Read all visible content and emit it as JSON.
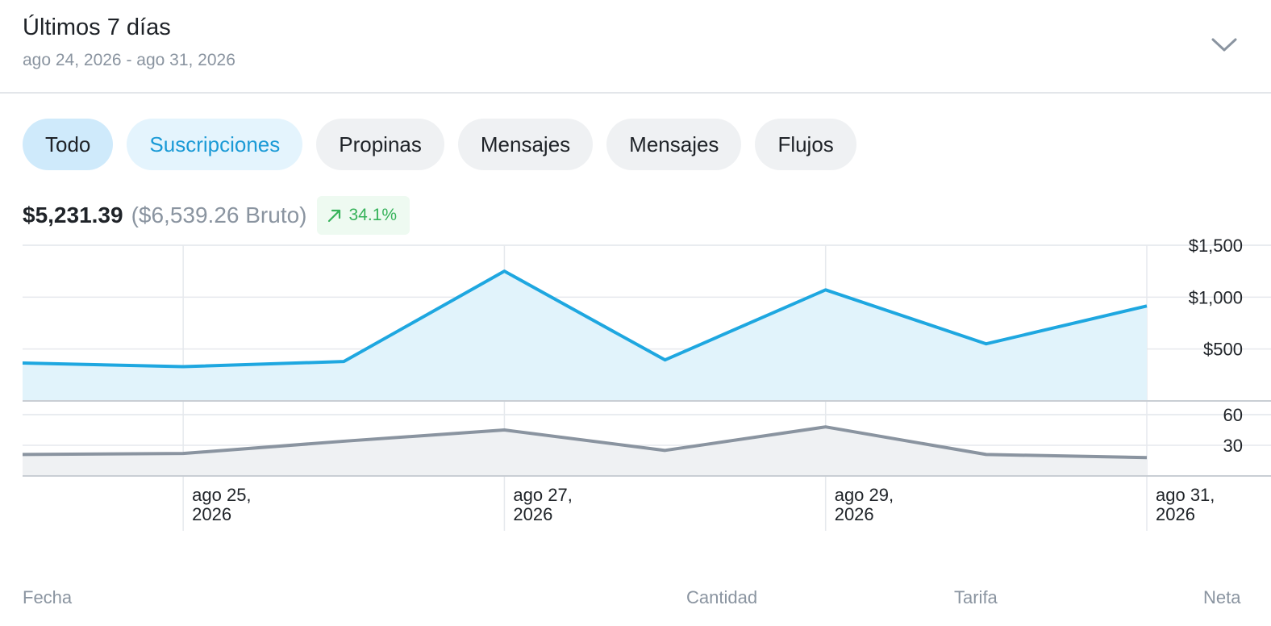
{
  "header": {
    "title": "Últimos 7 días",
    "range": "ago 24, 2026 - ago 31, 2026",
    "icon": "chevron-down-icon"
  },
  "tabs": [
    {
      "label": "Todo",
      "state": "selected"
    },
    {
      "label": "Suscripciones",
      "state": "active"
    },
    {
      "label": "Propinas",
      "state": "default"
    },
    {
      "label": "Mensajes",
      "state": "default"
    },
    {
      "label": "Mensajes",
      "state": "default"
    },
    {
      "label": "Flujos",
      "state": "default"
    }
  ],
  "summary": {
    "net": "$5,231.39",
    "gross": "($6,539.26 Bruto)",
    "change": "34.1%",
    "change_icon": "trend-up-arrow-icon"
  },
  "table": {
    "columns": [
      "Fecha",
      "Cantidad",
      "Tarifa",
      "Neta"
    ]
  },
  "colors": {
    "earnings_line": "#1ea7e0",
    "earnings_fill": "#e1f3fb",
    "count_line": "#8a94a0",
    "count_fill": "#eff1f3",
    "positive": "#36b25a"
  },
  "chart_data": [
    {
      "type": "area",
      "x": [
        "ago 24, 2026",
        "ago 25, 2026",
        "ago 26, 2026",
        "ago 27, 2026",
        "ago 28, 2026",
        "ago 29, 2026",
        "ago 30, 2026",
        "ago 31, 2026"
      ],
      "values": [
        365,
        330,
        380,
        1250,
        395,
        1070,
        550,
        915
      ],
      "y_ticks": [
        "$500",
        "$1,000",
        "$1,500"
      ],
      "y_tick_values": [
        500,
        1000,
        1500
      ],
      "ylim": [
        0,
        1500
      ],
      "grid": true
    },
    {
      "type": "area",
      "x": [
        "ago 24, 2026",
        "ago 25, 2026",
        "ago 26, 2026",
        "ago 27, 2026",
        "ago 28, 2026",
        "ago 29, 2026",
        "ago 30, 2026",
        "ago 31, 2026"
      ],
      "values": [
        21,
        22,
        34,
        45,
        25,
        48,
        21,
        18
      ],
      "y_ticks": [
        "30",
        "60"
      ],
      "y_tick_values": [
        30,
        60
      ],
      "ylim": [
        0,
        60
      ],
      "grid": true
    }
  ],
  "x_axis": {
    "labels": [
      {
        "index": 1,
        "line1": "ago 25,",
        "line2": "2026"
      },
      {
        "index": 3,
        "line1": "ago 27,",
        "line2": "2026"
      },
      {
        "index": 5,
        "line1": "ago 29,",
        "line2": "2026"
      },
      {
        "index": 7,
        "line1": "ago 31,",
        "line2": "2026"
      }
    ]
  }
}
